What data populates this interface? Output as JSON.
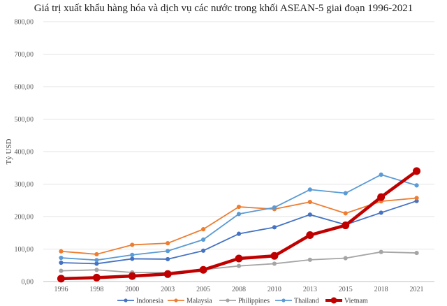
{
  "chart_data": {
    "type": "line",
    "title": "Giá trị xuất khẩu hàng hóa và dịch vụ các nước trong khối ASEAN-5 giai đoạn 1996-2021",
    "xlabel": "",
    "ylabel": "Tỷ USD",
    "categories": [
      "1996",
      "1998",
      "2000",
      "2003",
      "2005",
      "2008",
      "2010",
      "2013",
      "2015",
      "2018",
      "2021"
    ],
    "ylim": [
      0,
      800
    ],
    "yticks": [
      "0,00",
      "100,00",
      "200,00",
      "300,00",
      "400,00",
      "500,00",
      "600,00",
      "700,00",
      "800,00"
    ],
    "grid": true,
    "legend_position": "bottom",
    "series": [
      {
        "name": "Indonesia",
        "color": "#4472C4",
        "values": [
          58,
          55,
          70,
          69,
          95,
          147,
          167,
          206,
          175,
          212,
          248
        ]
      },
      {
        "name": "Malaysia",
        "color": "#ED7D31",
        "values": [
          93,
          84,
          113,
          118,
          161,
          230,
          223,
          245,
          210,
          247,
          257
        ]
      },
      {
        "name": "Philippines",
        "color": "#A5A5A5",
        "values": [
          33,
          36,
          28,
          28,
          37,
          48,
          55,
          67,
          72,
          91,
          88
        ]
      },
      {
        "name": "Thailand",
        "color": "#5B9BD5",
        "values": [
          73,
          66,
          82,
          94,
          129,
          208,
          228,
          283,
          272,
          329,
          296
        ]
      },
      {
        "name": "Vietnam",
        "color": "#C00000",
        "values": [
          9,
          12,
          17,
          23,
          36,
          71,
          79,
          143,
          173,
          260,
          340
        ],
        "emphasis": true
      }
    ]
  }
}
